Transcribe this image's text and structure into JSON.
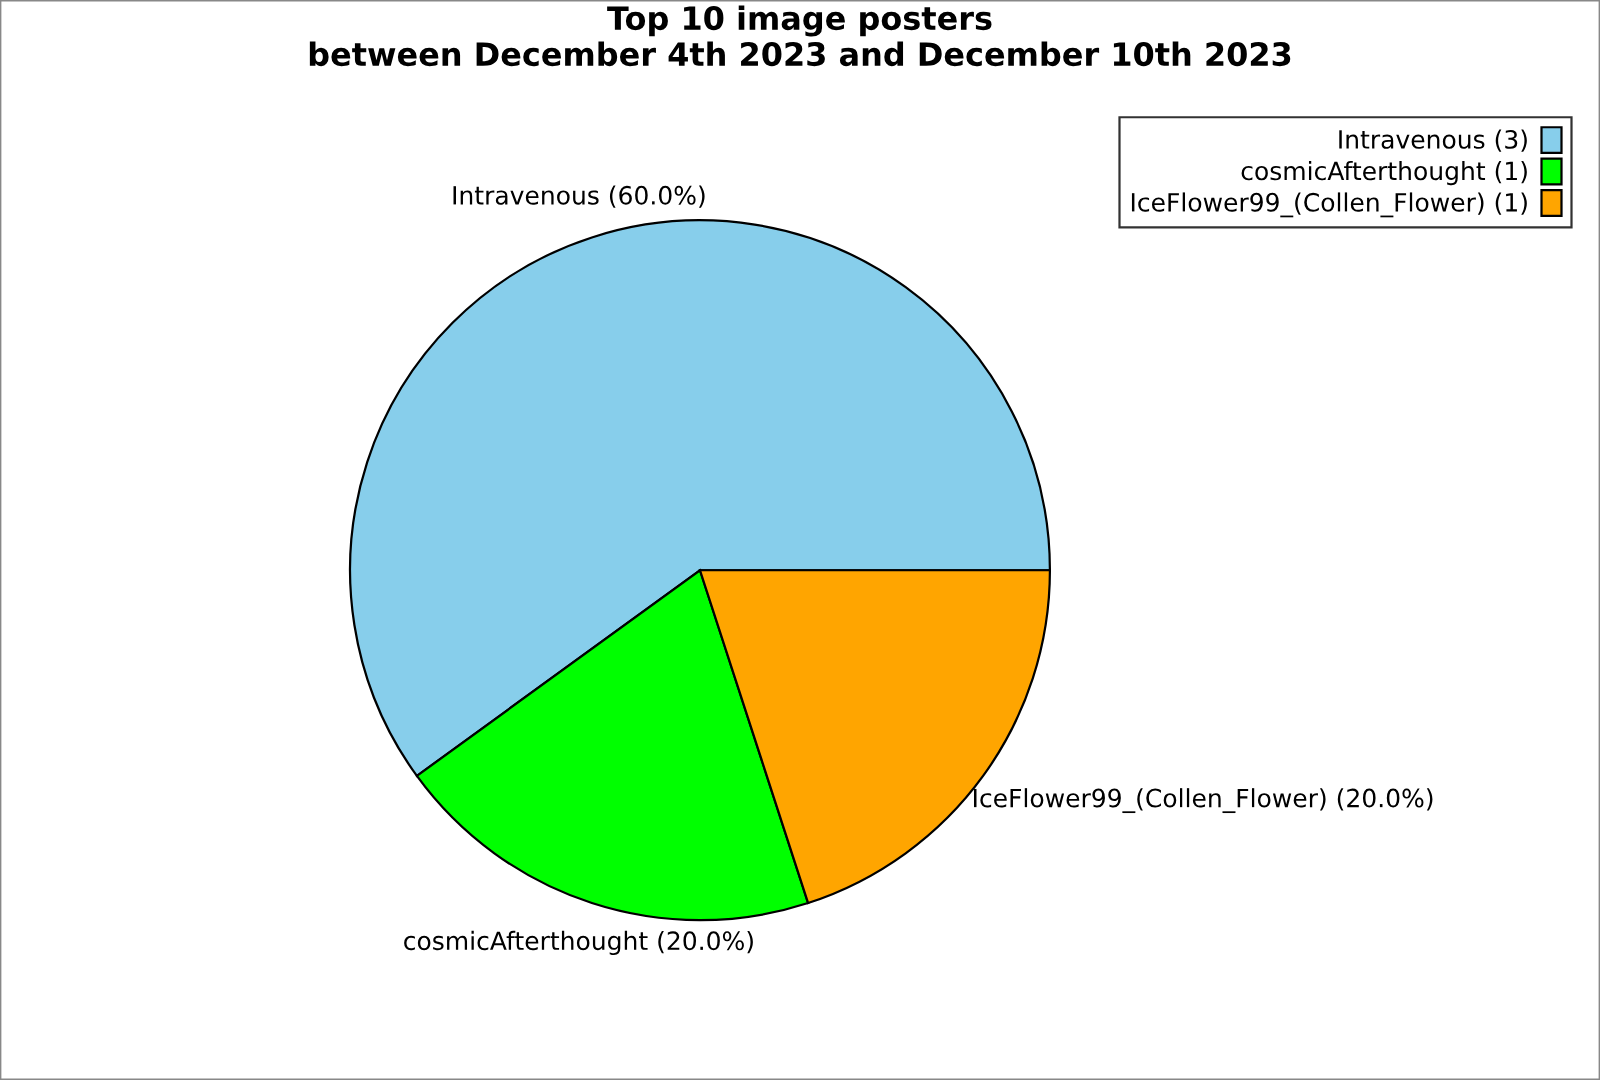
{
  "chart_data": {
    "type": "pie",
    "title": "Top 10 image posters\nbetween December 4th 2023 and December 10th 2023",
    "categories": [
      "Intravenous (3)",
      "cosmicAfterthought (1)",
      "IceFlower99_(Collen_Flower) (1)"
    ],
    "values": [
      60,
      20,
      20
    ],
    "value_labels": [
      "Intravenous (60.0%)",
      "cosmicAfterthought (20.0%)",
      "IceFlower99_(Collen_Flower) (20.0%)"
    ],
    "colors": [
      "#87ceeb",
      "#00ff00",
      "#ffa500"
    ],
    "legend": "top right"
  }
}
